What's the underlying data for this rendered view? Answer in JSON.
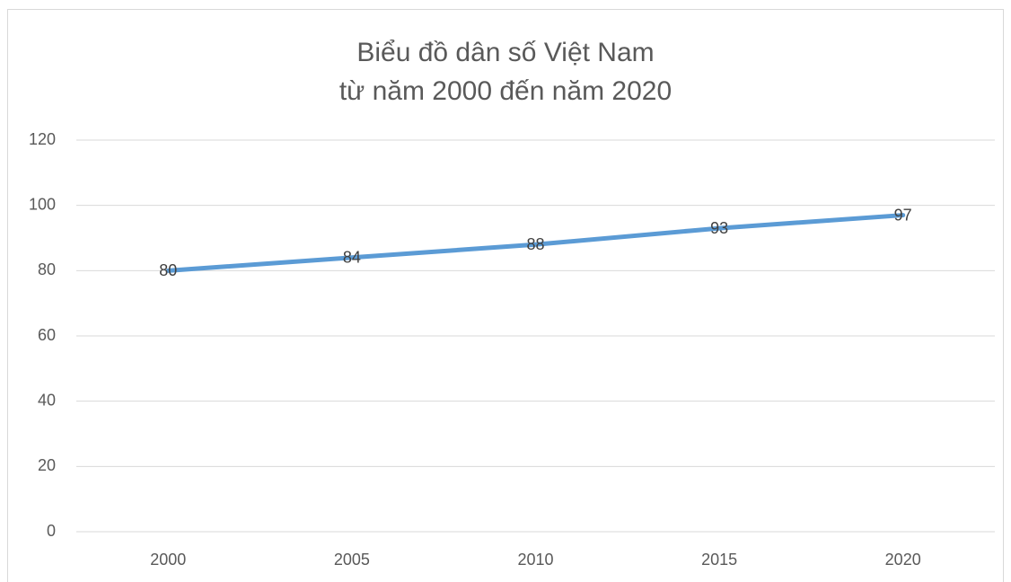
{
  "chart_data": {
    "type": "line",
    "title": [
      "Biểu đồ dân số Việt Nam",
      "từ năm 2000 đến năm 2020"
    ],
    "categories": [
      "2000",
      "2005",
      "2010",
      "2015",
      "2020"
    ],
    "series": [
      {
        "color": "#5b9bd5",
        "values": [
          80,
          84,
          88,
          93,
          97
        ]
      }
    ],
    "ylim": [
      0,
      120
    ],
    "yticks": [
      0,
      20,
      40,
      60,
      80,
      100,
      120
    ],
    "grid": true,
    "data_labels": true
  }
}
